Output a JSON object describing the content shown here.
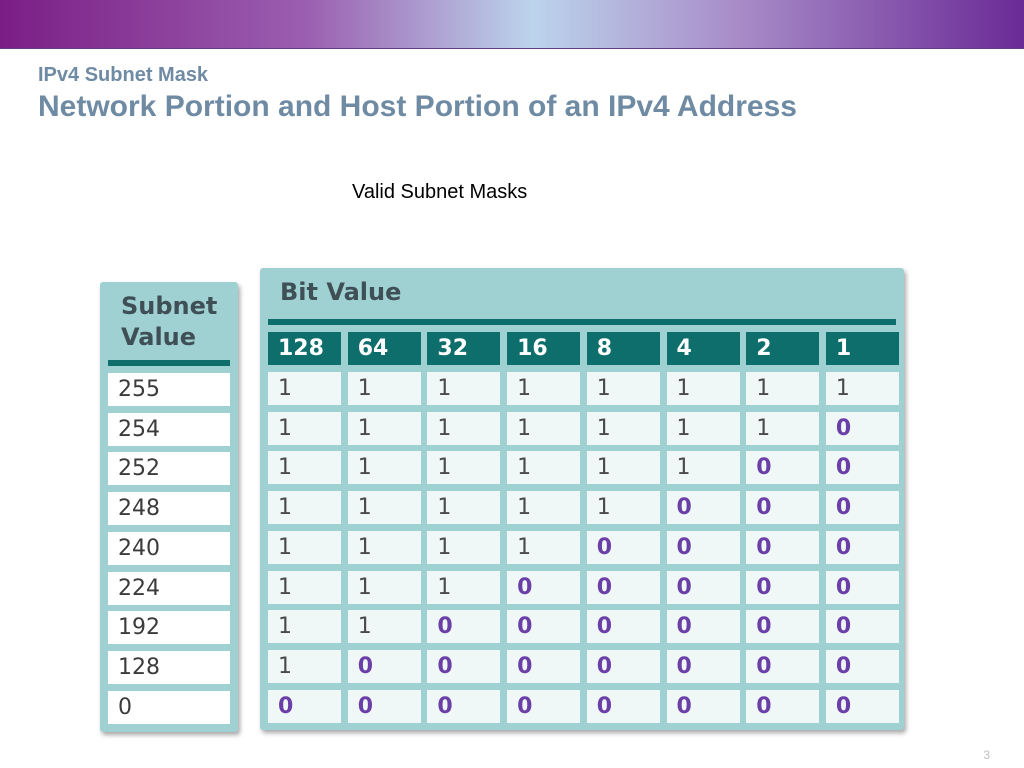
{
  "header": {
    "subtitle": "IPv4 Subnet Mask",
    "title": "Network Portion and Host Portion of an IPv4 Address"
  },
  "caption": "Valid Subnet Masks",
  "table": {
    "subnet_header": "Subnet Value",
    "bit_header": "Bit Value",
    "bit_values": [
      "128",
      "64",
      "32",
      "16",
      "8",
      "4",
      "2",
      "1"
    ],
    "rows": [
      {
        "value": "255",
        "bits": [
          "1",
          "1",
          "1",
          "1",
          "1",
          "1",
          "1",
          "1"
        ]
      },
      {
        "value": "254",
        "bits": [
          "1",
          "1",
          "1",
          "1",
          "1",
          "1",
          "1",
          "0"
        ]
      },
      {
        "value": "252",
        "bits": [
          "1",
          "1",
          "1",
          "1",
          "1",
          "1",
          "0",
          "0"
        ]
      },
      {
        "value": "248",
        "bits": [
          "1",
          "1",
          "1",
          "1",
          "1",
          "0",
          "0",
          "0"
        ]
      },
      {
        "value": "240",
        "bits": [
          "1",
          "1",
          "1",
          "1",
          "0",
          "0",
          "0",
          "0"
        ]
      },
      {
        "value": "224",
        "bits": [
          "1",
          "1",
          "1",
          "0",
          "0",
          "0",
          "0",
          "0"
        ]
      },
      {
        "value": "192",
        "bits": [
          "1",
          "1",
          "0",
          "0",
          "0",
          "0",
          "0",
          "0"
        ]
      },
      {
        "value": "128",
        "bits": [
          "1",
          "0",
          "0",
          "0",
          "0",
          "0",
          "0",
          "0"
        ]
      },
      {
        "value": "0",
        "bits": [
          "0",
          "0",
          "0",
          "0",
          "0",
          "0",
          "0",
          "0"
        ]
      }
    ]
  },
  "colors": {
    "accent_teal": "#0e6e6c",
    "panel_bg": "#9fd1d3",
    "zero_bit": "#6b3fa8",
    "title_blue": "#6f8ba4"
  },
  "footer": {
    "page_number": "3"
  }
}
